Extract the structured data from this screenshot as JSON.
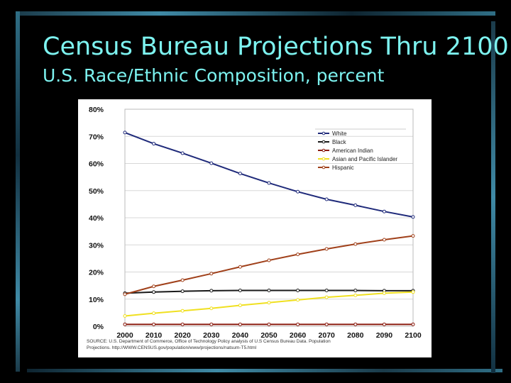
{
  "title": "Census Bureau Projections Thru 2100",
  "subtitle": "U.S. Race/Ethnic Composition, percent",
  "source_lines": [
    "SOURCE: U.S. Department of Commerce, Office of Technology Policy analysis of U.S Census Bureau Data. Population",
    "Projections. http://WWW.CENSUS.gov/population/www/projections/natsum-T5.html"
  ],
  "chart_data": {
    "type": "line",
    "x": [
      2000,
      2010,
      2020,
      2030,
      2040,
      2050,
      2060,
      2070,
      2080,
      2090,
      2100
    ],
    "x_tick_labels": [
      "2000",
      "2010",
      "2020",
      "2030",
      "2040",
      "2050",
      "2060",
      "2070",
      "2080",
      "2090",
      "2100"
    ],
    "y_tick_labels": [
      "0%",
      "10%",
      "20%",
      "30%",
      "40%",
      "50%",
      "60%",
      "70%",
      "80%"
    ],
    "ylim": [
      0,
      80
    ],
    "grid": true,
    "legend_position": "top-right",
    "series": [
      {
        "name": "White",
        "color": "#1f2a7a",
        "values": [
          71.4,
          67.3,
          63.8,
          60.1,
          56.3,
          52.8,
          49.6,
          46.8,
          44.6,
          42.3,
          40.3
        ]
      },
      {
        "name": "Black",
        "color": "#1a1a1a",
        "values": [
          12.2,
          12.6,
          12.9,
          13.1,
          13.2,
          13.2,
          13.2,
          13.2,
          13.2,
          13.1,
          13.1
        ]
      },
      {
        "name": "American Indian",
        "color": "#8b1a0e",
        "values": [
          0.7,
          0.7,
          0.7,
          0.7,
          0.7,
          0.7,
          0.7,
          0.7,
          0.7,
          0.7,
          0.7
        ]
      },
      {
        "name": "Asian and Pacific Islander",
        "color": "#f0e020",
        "values": [
          3.8,
          4.8,
          5.7,
          6.6,
          7.7,
          8.7,
          9.7,
          10.7,
          11.4,
          12.2,
          12.6
        ]
      },
      {
        "name": "Hispanic",
        "color": "#a0401a",
        "values": [
          11.8,
          14.7,
          17.0,
          19.4,
          21.9,
          24.3,
          26.5,
          28.5,
          30.3,
          31.9,
          33.3
        ]
      }
    ]
  }
}
